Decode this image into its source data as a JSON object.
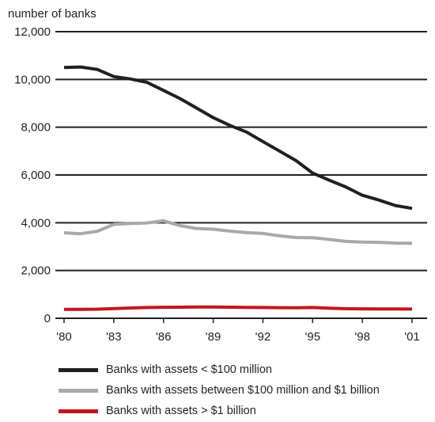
{
  "chart_data": {
    "type": "line",
    "ylabel": "number of banks",
    "ylim": [
      0,
      12000
    ],
    "yticks": [
      0,
      2000,
      4000,
      6000,
      8000,
      10000,
      12000
    ],
    "ytick_labels": [
      "0",
      "2,000",
      "4,000",
      "6,000",
      "8,000",
      "10,000",
      "12,000"
    ],
    "xlim": [
      1980,
      2001
    ],
    "xticks": [
      1980,
      1983,
      1986,
      1989,
      1992,
      1995,
      1998,
      2001
    ],
    "xtick_labels": [
      "'80",
      "'83",
      "'86",
      "'89",
      "'92",
      "'95",
      "'98",
      "'01"
    ],
    "grid": true,
    "legend_position": "bottom",
    "x": [
      1980,
      1981,
      1982,
      1983,
      1984,
      1985,
      1986,
      1987,
      1988,
      1989,
      1990,
      1991,
      1992,
      1993,
      1994,
      1995,
      1996,
      1997,
      1998,
      1999,
      2000,
      2001
    ],
    "series": [
      {
        "name": "Banks with assets < $100 million",
        "color": "#231f20",
        "values": [
          10500,
          10520,
          10420,
          10120,
          10020,
          9880,
          9540,
          9200,
          8800,
          8400,
          8080,
          7800,
          7400,
          7000,
          6600,
          6080,
          5780,
          5500,
          5150,
          4950,
          4720,
          4600
        ]
      },
      {
        "name": "Banks with assets between $100 million and $1 billion",
        "color": "#a7a9ac",
        "values": [
          3580,
          3540,
          3640,
          3930,
          3970,
          3990,
          4080,
          3880,
          3760,
          3730,
          3650,
          3590,
          3550,
          3450,
          3380,
          3370,
          3300,
          3220,
          3190,
          3180,
          3150,
          3140
        ]
      },
      {
        "name": "Banks with assets > $1 billion",
        "color": "#c4161c",
        "values": [
          370,
          375,
          380,
          405,
          430,
          450,
          460,
          465,
          470,
          470,
          465,
          455,
          450,
          445,
          440,
          450,
          420,
          400,
          395,
          390,
          390,
          385
        ]
      }
    ]
  }
}
